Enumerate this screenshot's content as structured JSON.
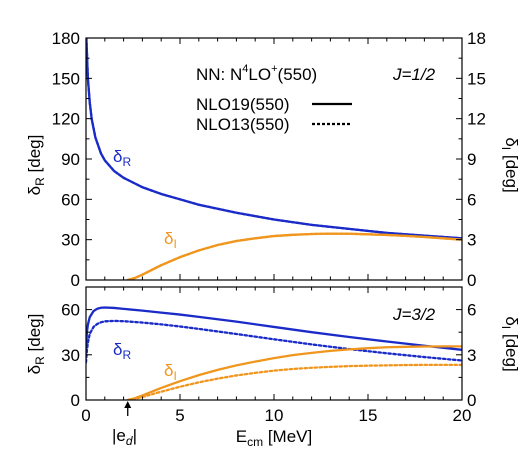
{
  "colors": {
    "blue": "#1a2bc8",
    "orange": "#f0961e"
  },
  "chart_data": [
    {
      "type": "line",
      "panel": "top",
      "title": "",
      "annotation_interaction": "NN: N",
      "annotation_interaction_sup": "4",
      "annotation_interaction_mid": "LO",
      "annotation_interaction_sup2": "+",
      "annotation_interaction_end": "(550)",
      "annotation_j": "J=1/2",
      "legend": [
        {
          "name": "NLO19(550)",
          "style": "solid"
        },
        {
          "name": "NLO13(550)",
          "style": "dotted"
        }
      ],
      "legend_placement": "top-right",
      "xlim": [
        0,
        20
      ],
      "ylim_left": [
        0,
        180
      ],
      "ylim_right": [
        0,
        18
      ],
      "yticks_left": [
        0,
        30,
        60,
        90,
        120,
        150,
        180
      ],
      "yticks_right": [
        0,
        3,
        6,
        9,
        12,
        15,
        18
      ],
      "ylabel_left": "δ",
      "ylabel_left_sub": "R",
      "ylabel_left_unit": " [deg]",
      "ylabel_right": "δ",
      "ylabel_right_sub": "I",
      "ylabel_right_unit": " [deg]",
      "series": [
        {
          "name": "",
          "label": "δ",
          "label_sub": "R",
          "color": "blue",
          "style": "solid",
          "axis": "left",
          "x": [
            0.02,
            0.1,
            0.2,
            0.3,
            0.5,
            0.8,
            1,
            1.5,
            2,
            3,
            4,
            5,
            6,
            8,
            10,
            12,
            14,
            16,
            18,
            20
          ],
          "y": [
            180,
            150,
            132,
            120,
            106,
            94,
            89,
            81,
            76,
            69,
            64,
            60,
            56,
            50,
            45,
            41,
            38,
            35,
            33,
            31
          ]
        },
        {
          "name": "",
          "color": "blue",
          "style": "dotted",
          "axis": "left",
          "x": [
            0.02,
            0.1,
            0.2,
            0.3,
            0.5,
            0.8,
            1,
            1.5,
            2,
            3,
            4,
            5,
            6,
            8,
            10,
            12,
            14,
            16,
            18,
            20
          ],
          "y": [
            180,
            150,
            132,
            120,
            106,
            94,
            89,
            81,
            76,
            69,
            64,
            60,
            56,
            50,
            45,
            41,
            38,
            35,
            33,
            31
          ]
        },
        {
          "name": "",
          "label": "δ",
          "label_sub": "I",
          "color": "orange",
          "style": "solid",
          "axis": "right",
          "x": [
            2.22,
            2.6,
            3,
            3.5,
            4,
            5,
            6,
            7,
            8,
            9,
            10,
            11,
            12,
            13,
            14,
            15,
            16,
            17,
            18,
            19,
            20
          ],
          "y": [
            0,
            0.15,
            0.4,
            0.75,
            1.1,
            1.7,
            2.2,
            2.6,
            2.9,
            3.1,
            3.27,
            3.36,
            3.42,
            3.45,
            3.44,
            3.4,
            3.35,
            3.28,
            3.2,
            3.1,
            3.0
          ]
        },
        {
          "name": "",
          "color": "orange",
          "style": "dotted",
          "axis": "right",
          "x": [
            2.22,
            2.6,
            3,
            3.5,
            4,
            5,
            6,
            7,
            8,
            9,
            10,
            11,
            12,
            13,
            14,
            15,
            16,
            17,
            18,
            19,
            20
          ],
          "y": [
            0,
            0.15,
            0.4,
            0.75,
            1.1,
            1.7,
            2.2,
            2.6,
            2.9,
            3.1,
            3.27,
            3.36,
            3.42,
            3.45,
            3.44,
            3.4,
            3.35,
            3.28,
            3.2,
            3.1,
            3.0
          ]
        }
      ]
    },
    {
      "type": "line",
      "panel": "bottom",
      "title": "",
      "annotation_j": "J=3/2",
      "xlim": [
        0,
        20
      ],
      "xticks": [
        0,
        5,
        10,
        15,
        20
      ],
      "xlabel": "E",
      "xlabel_sub": "cm",
      "xlabel_unit": " [MeV]",
      "ed_marker": {
        "x": 2.22,
        "label": "|e",
        "label_sub": "d",
        "label_end": "|"
      },
      "ylim_left": [
        0,
        75
      ],
      "ylim_right": [
        0,
        7.5
      ],
      "yticks_left": [
        0,
        30,
        60
      ],
      "yticks_right": [
        0,
        3,
        6
      ],
      "ylabel_left": "δ",
      "ylabel_left_sub": "R",
      "ylabel_left_unit": " [deg]",
      "ylabel_right": "δ",
      "ylabel_right_sub": "I",
      "ylabel_right_unit": " [deg]",
      "series": [
        {
          "name": "",
          "color": "blue",
          "style": "solid",
          "axis": "left",
          "x": [
            0,
            0.05,
            0.1,
            0.2,
            0.4,
            0.6,
            0.8,
            1,
            1.5,
            2,
            3,
            4,
            5,
            6,
            8,
            10,
            12,
            14,
            16,
            18,
            20
          ],
          "y": [
            33,
            45,
            50,
            55,
            59,
            60.6,
            61.2,
            61.4,
            61.1,
            60.5,
            59.3,
            58,
            56.7,
            55.2,
            52,
            48.5,
            45,
            41.8,
            38.8,
            36,
            33.3
          ]
        },
        {
          "name": "",
          "label": "δ",
          "label_sub": "R",
          "color": "blue",
          "style": "dotted",
          "axis": "left",
          "x": [
            0,
            0.05,
            0.1,
            0.2,
            0.4,
            0.6,
            0.8,
            1,
            1.5,
            2,
            3,
            4,
            5,
            6,
            8,
            10,
            12,
            14,
            16,
            18,
            20
          ],
          "y": [
            25,
            33,
            38,
            44,
            48.5,
            50.5,
            51.6,
            52.2,
            52.5,
            52.3,
            51.4,
            50.2,
            48.8,
            47.2,
            43.8,
            40.3,
            36.9,
            33.8,
            31,
            28.5,
            26.2
          ]
        },
        {
          "name": "",
          "label": "δ",
          "label_sub": "I",
          "color": "orange",
          "style": "solid",
          "axis": "right",
          "x": [
            2.22,
            2.6,
            3,
            3.5,
            4,
            5,
            6,
            7,
            8,
            9,
            10,
            11,
            12,
            13,
            14,
            15,
            16,
            17,
            18,
            19,
            20
          ],
          "y": [
            0,
            0.12,
            0.3,
            0.55,
            0.8,
            1.25,
            1.65,
            2.0,
            2.3,
            2.55,
            2.78,
            2.98,
            3.13,
            3.26,
            3.36,
            3.44,
            3.5,
            3.53,
            3.55,
            3.56,
            3.56
          ]
        },
        {
          "name": "",
          "color": "orange",
          "style": "dotted",
          "axis": "right",
          "x": [
            2.22,
            2.6,
            3,
            3.5,
            4,
            5,
            6,
            7,
            8,
            9,
            10,
            11,
            12,
            13,
            14,
            15,
            16,
            17,
            18,
            19,
            20
          ],
          "y": [
            0,
            0.08,
            0.2,
            0.38,
            0.55,
            0.88,
            1.17,
            1.42,
            1.63,
            1.8,
            1.95,
            2.06,
            2.14,
            2.2,
            2.25,
            2.28,
            2.3,
            2.32,
            2.33,
            2.33,
            2.33
          ]
        }
      ]
    }
  ]
}
